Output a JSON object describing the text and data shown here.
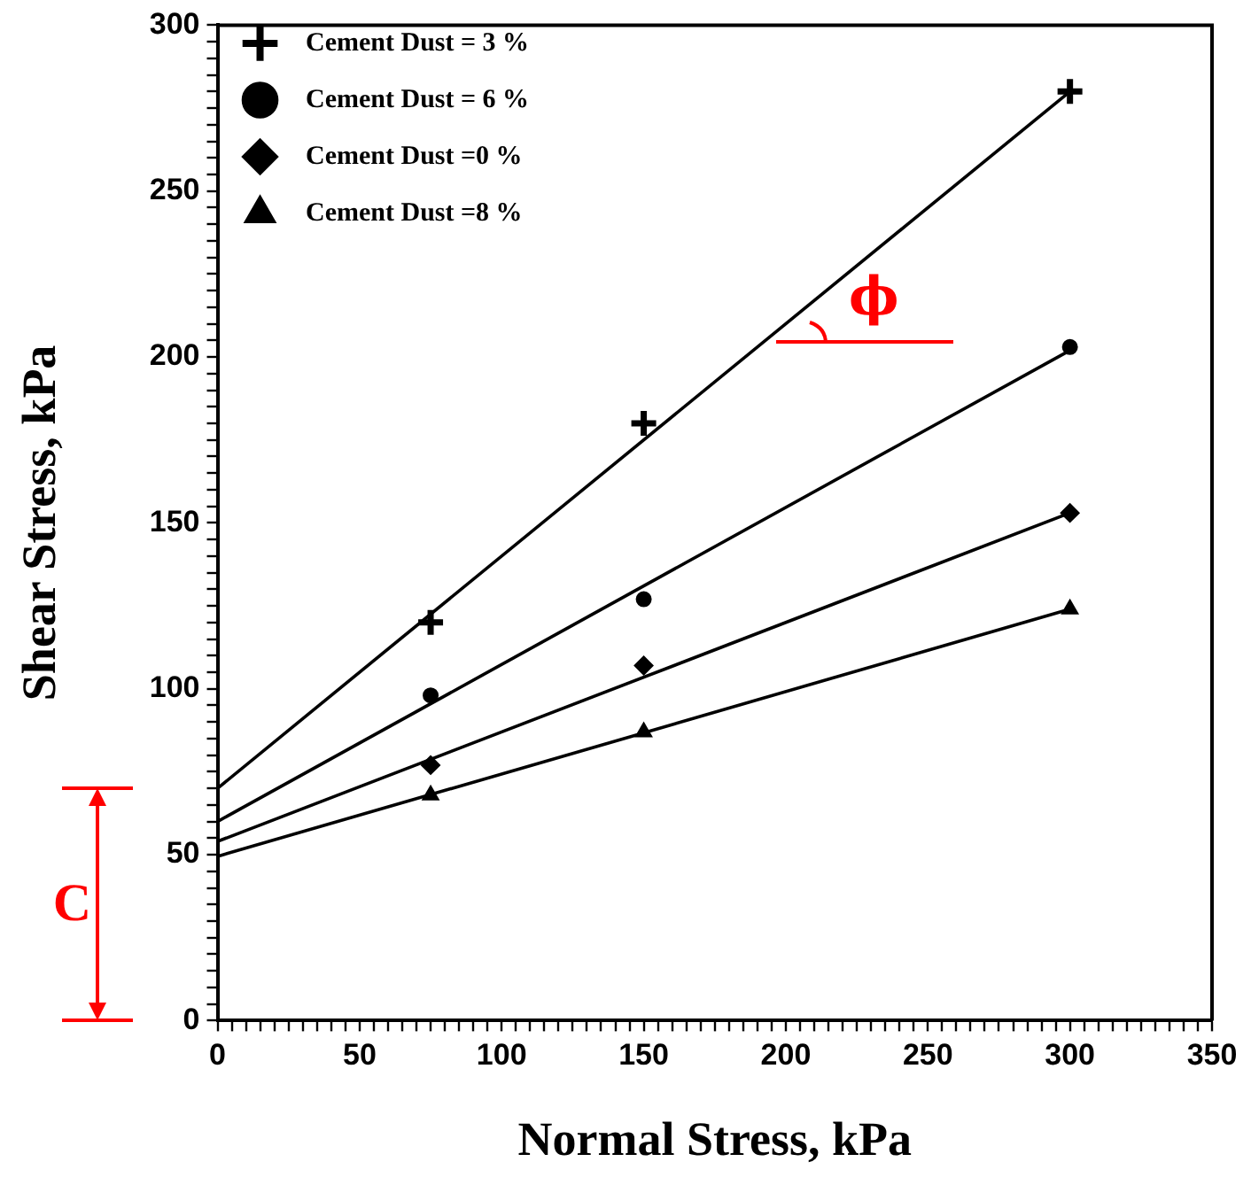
{
  "chart_data": {
    "type": "scatter",
    "xlabel": "Normal Stress, kPa",
    "ylabel": "Shear Stress, kPa",
    "xlim": [
      0,
      350
    ],
    "ylim": [
      0,
      300
    ],
    "xticks": [
      0,
      {
        "value": 5,
        "label": null
      },
      {
        "value": 10,
        "label": null
      },
      {
        "value": 15,
        "label": null
      },
      {
        "value": 20,
        "label": null
      },
      {
        "value": 25,
        "label": null
      },
      {
        "value": 30,
        "label": null
      },
      {
        "value": 35,
        "label": null
      },
      {
        "value": 40,
        "label": null
      },
      {
        "value": 45,
        "label": null
      },
      50,
      {
        "value": 55,
        "label": null
      },
      {
        "value": 60,
        "label": null
      },
      {
        "value": 65,
        "label": null
      },
      {
        "value": 70,
        "label": null
      },
      {
        "value": 75,
        "label": null
      },
      {
        "value": 80,
        "label": null
      },
      {
        "value": 85,
        "label": null
      },
      {
        "value": 90,
        "label": null
      },
      {
        "value": 95,
        "label": null
      },
      100,
      {
        "value": 105,
        "label": null
      },
      {
        "value": 110,
        "label": null
      },
      {
        "value": 115,
        "label": null
      },
      {
        "value": 120,
        "label": null
      },
      {
        "value": 125,
        "label": null
      },
      {
        "value": 130,
        "label": null
      },
      {
        "value": 135,
        "label": null
      },
      {
        "value": 140,
        "label": null
      },
      {
        "value": 145,
        "label": null
      },
      150,
      {
        "value": 155,
        "label": null
      },
      {
        "value": 160,
        "label": null
      },
      {
        "value": 165,
        "label": null
      },
      {
        "value": 170,
        "label": null
      },
      {
        "value": 175,
        "label": null
      },
      {
        "value": 180,
        "label": null
      },
      {
        "value": 185,
        "label": null
      },
      {
        "value": 190,
        "label": null
      },
      {
        "value": 195,
        "label": null
      },
      200,
      {
        "value": 205,
        "label": null
      },
      {
        "value": 210,
        "label": null
      },
      {
        "value": 215,
        "label": null
      },
      {
        "value": 220,
        "label": null
      },
      {
        "value": 225,
        "label": null
      },
      {
        "value": 230,
        "label": null
      },
      {
        "value": 235,
        "label": null
      },
      {
        "value": 240,
        "label": null
      },
      {
        "value": 245,
        "label": null
      },
      250,
      {
        "value": 255,
        "label": null
      },
      {
        "value": 260,
        "label": null
      },
      {
        "value": 265,
        "label": null
      },
      {
        "value": 270,
        "label": null
      },
      {
        "value": 275,
        "label": null
      },
      {
        "value": 280,
        "label": null
      },
      {
        "value": 285,
        "label": null
      },
      {
        "value": 290,
        "label": null
      },
      {
        "value": 295,
        "label": null
      },
      300,
      {
        "value": 305,
        "label": null
      },
      {
        "value": 310,
        "label": null
      },
      {
        "value": 315,
        "label": null
      },
      {
        "value": 320,
        "label": null
      },
      {
        "value": 325,
        "label": null
      },
      {
        "value": 330,
        "label": null
      },
      {
        "value": 335,
        "label": null
      },
      {
        "value": 340,
        "label": null
      },
      {
        "value": 345,
        "label": null
      },
      350
    ],
    "yticks": [
      0,
      {
        "value": 5,
        "label": null
      },
      {
        "value": 10,
        "label": null
      },
      {
        "value": 15,
        "label": null
      },
      {
        "value": 20,
        "label": null
      },
      {
        "value": 25,
        "label": null
      },
      {
        "value": 30,
        "label": null
      },
      {
        "value": 35,
        "label": null
      },
      {
        "value": 40,
        "label": null
      },
      {
        "value": 45,
        "label": null
      },
      50,
      {
        "value": 55,
        "label": null
      },
      {
        "value": 60,
        "label": null
      },
      {
        "value": 65,
        "label": null
      },
      {
        "value": 70,
        "label": null
      },
      {
        "value": 75,
        "label": null
      },
      {
        "value": 80,
        "label": null
      },
      {
        "value": 85,
        "label": null
      },
      {
        "value": 90,
        "label": null
      },
      {
        "value": 95,
        "label": null
      },
      100,
      {
        "value": 105,
        "label": null
      },
      {
        "value": 110,
        "label": null
      },
      {
        "value": 115,
        "label": null
      },
      {
        "value": 120,
        "label": null
      },
      {
        "value": 125,
        "label": null
      },
      {
        "value": 130,
        "label": null
      },
      {
        "value": 135,
        "label": null
      },
      {
        "value": 140,
        "label": null
      },
      {
        "value": 145,
        "label": null
      },
      150,
      {
        "value": 155,
        "label": null
      },
      {
        "value": 160,
        "label": null
      },
      {
        "value": 165,
        "label": null
      },
      {
        "value": 170,
        "label": null
      },
      {
        "value": 175,
        "label": null
      },
      {
        "value": 180,
        "label": null
      },
      {
        "value": 185,
        "label": null
      },
      {
        "value": 190,
        "label": null
      },
      {
        "value": 195,
        "label": null
      },
      200,
      {
        "value": 205,
        "label": null
      },
      {
        "value": 210,
        "label": null
      },
      {
        "value": 215,
        "label": null
      },
      {
        "value": 220,
        "label": null
      },
      {
        "value": 225,
        "label": null
      },
      {
        "value": 230,
        "label": null
      },
      {
        "value": 235,
        "label": null
      },
      {
        "value": 240,
        "label": null
      },
      {
        "value": 245,
        "label": null
      },
      250,
      {
        "value": 255,
        "label": null
      },
      {
        "value": 260,
        "label": null
      },
      {
        "value": 265,
        "label": null
      },
      {
        "value": 270,
        "label": null
      },
      {
        "value": 275,
        "label": null
      },
      {
        "value": 280,
        "label": null
      },
      {
        "value": 285,
        "label": null
      },
      {
        "value": 290,
        "label": null
      },
      {
        "value": 295,
        "label": null
      },
      300
    ],
    "grid": false,
    "legend": "top left",
    "series": [
      {
        "name": "Cement Dust = 3 %",
        "color": "#000000",
        "marker": "cross",
        "x": [
          75,
          150,
          300
        ],
        "values": [
          120,
          180,
          280
        ]
      },
      {
        "name": "Cement Dust = 6 %",
        "color": "#000000",
        "marker": "circle",
        "x": [
          75,
          150,
          300
        ],
        "values": [
          98,
          127,
          203
        ]
      },
      {
        "name": "Cement Dust =0 %",
        "color": "#000000",
        "marker": "diamond",
        "x": [
          75,
          150,
          300
        ],
        "values": [
          77,
          107,
          153
        ]
      },
      {
        "name": "Cement Dust =8 %",
        "color": "#000000",
        "marker": "triangle",
        "x": [
          75,
          150,
          300
        ],
        "values": [
          68,
          87,
          124
        ]
      },
      {
        "type": "line",
        "color": "#000000",
        "marker": "none",
        "x": [
          0,
          300
        ],
        "values": [
          70,
          280
        ]
      },
      {
        "type": "line",
        "color": "#000000",
        "marker": "none",
        "x": [
          0,
          300
        ],
        "values": [
          60,
          202
        ]
      },
      {
        "type": "line",
        "color": "#000000",
        "marker": "none",
        "x": [
          0,
          300
        ],
        "values": [
          54,
          153
        ]
      },
      {
        "type": "line",
        "color": "#000000",
        "marker": "none",
        "x": [
          0,
          300
        ],
        "values": [
          49.5,
          124
        ]
      }
    ],
    "annotations": [
      "C",
      "ϕ"
    ]
  }
}
